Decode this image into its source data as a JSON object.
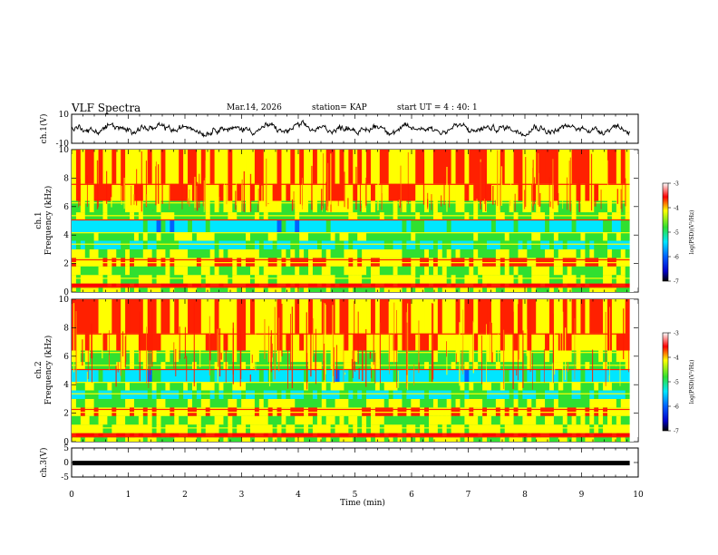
{
  "header": {
    "title": "VLF Spectra",
    "date": "Mar.14, 2026",
    "station": "station= KAP",
    "start": "start  UT  =   4 : 40: 1"
  },
  "chart_data": [
    {
      "type": "line",
      "id": "ch1-waveform",
      "ylabel": "ch.1(V)",
      "ylim": [
        -10,
        10
      ],
      "yticks": [
        "10",
        "-10"
      ],
      "xlim": [
        0,
        10
      ],
      "note": "noisy voltage trace oscillating roughly between -4 and 4 V over 0 to 9.85 min"
    },
    {
      "type": "heatmap",
      "id": "ch1-spectrogram",
      "ylabel_line1": "ch.1",
      "ylabel_line2": "Frequency  (kHz)",
      "ylim": [
        0,
        10
      ],
      "yticks": [
        "0",
        "2",
        "4",
        "6",
        "8",
        "10"
      ],
      "xlim": [
        0,
        10
      ],
      "data_extent_min": 9.85,
      "colorbar": {
        "label": "log(PSD)(V²/Hz)",
        "range": [
          -7,
          -3
        ],
        "ticks": [
          "-3",
          "-4",
          "-5",
          "-6",
          "-7"
        ]
      }
    },
    {
      "type": "heatmap",
      "id": "ch2-spectrogram",
      "ylabel_line1": "ch.2",
      "ylabel_line2": "Frequency  (kHz)",
      "ylim": [
        0,
        10
      ],
      "yticks": [
        "0",
        "2",
        "4",
        "6",
        "8",
        "10"
      ],
      "xlim": [
        0,
        10
      ],
      "data_extent_min": 9.85,
      "colorbar": {
        "label": "log(PSD)(V²/Hz)",
        "range": [
          -7,
          -3
        ],
        "ticks": [
          "-3",
          "-4",
          "-5",
          "-6",
          "-7"
        ]
      }
    },
    {
      "type": "line",
      "id": "ch3-level",
      "ylabel": "ch.3(V)",
      "ylim": [
        -5,
        5
      ],
      "yticks": [
        "5",
        "0",
        "-5"
      ],
      "xlim": [
        0,
        10
      ],
      "value": -0.2,
      "note": "constant thick line near 0 V"
    }
  ],
  "xaxis": {
    "label": "Time  (min)",
    "ticks": [
      "0",
      "1",
      "2",
      "3",
      "4",
      "5",
      "6",
      "7",
      "8",
      "9",
      "10"
    ]
  }
}
